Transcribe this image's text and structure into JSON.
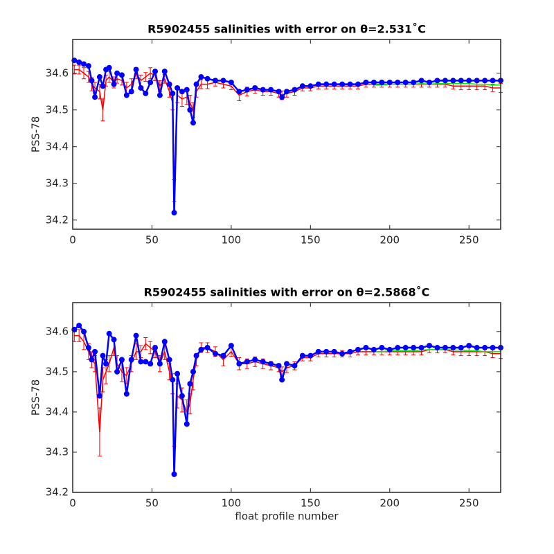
{
  "chart_data": [
    {
      "type": "line",
      "title": "R5902455 salinities with error on θ=2.531˚C",
      "ylabel": "PSS-78",
      "x": [
        1,
        4,
        7,
        10,
        12,
        14,
        17,
        19,
        21,
        23,
        26,
        28,
        31,
        34,
        37,
        40,
        43,
        46,
        49,
        52,
        55,
        58,
        61,
        63,
        64,
        66,
        69,
        72,
        74,
        76,
        78,
        81,
        85,
        90,
        95,
        100,
        105,
        110,
        115,
        120,
        125,
        130,
        132,
        135,
        140,
        145,
        150,
        155,
        160,
        165,
        170,
        175,
        180,
        185,
        190,
        195,
        200,
        205,
        210,
        215,
        220,
        225,
        230,
        235,
        240,
        245,
        250,
        255,
        260,
        265,
        270
      ],
      "xlim": [
        0,
        270
      ],
      "xticks": [
        0,
        50,
        100,
        150,
        200,
        250
      ],
      "ylim": [
        34.175,
        34.692
      ],
      "yticks": [
        34.2,
        34.3,
        34.4,
        34.5,
        34.6
      ],
      "series": [
        {
          "color": "#ff0000",
          "values": [
            34.61,
            34.61,
            34.6,
            34.59,
            34.57,
            34.56,
            34.55,
            34.5,
            34.58,
            34.59,
            34.575,
            34.585,
            34.58,
            34.56,
            34.57,
            34.6,
            34.58,
            34.59,
            34.6,
            34.595,
            34.565,
            34.585,
            34.55,
            34.52,
            34.28,
            34.54,
            34.53,
            34.535,
            34.52,
            34.5,
            34.55,
            34.57,
            34.57,
            34.575,
            34.57,
            34.565,
            34.54,
            34.55,
            34.555,
            34.55,
            34.55,
            34.545,
            34.54,
            34.545,
            34.55,
            34.56,
            34.56,
            34.565,
            34.565,
            34.565,
            34.565,
            34.565,
            34.565,
            34.57,
            34.57,
            34.57,
            34.57,
            34.57,
            34.57,
            34.57,
            34.57,
            34.57,
            34.57,
            34.57,
            34.565,
            34.565,
            34.565,
            34.565,
            34.565,
            34.56,
            34.56
          ],
          "errors": [
            0.012,
            0.012,
            0.015,
            0.015,
            0.018,
            0.015,
            0.02,
            0.03,
            0.015,
            0.015,
            0.015,
            0.012,
            0.012,
            0.015,
            0.015,
            0.015,
            0.015,
            0.012,
            0.015,
            0.015,
            0.015,
            0.012,
            0.015,
            0.02,
            0.03,
            0.02,
            0.02,
            0.02,
            0.02,
            0.02,
            0.015,
            0.012,
            0.012,
            0.01,
            0.01,
            0.01,
            0.015,
            0.012,
            0.01,
            0.01,
            0.01,
            0.01,
            0.012,
            0.01,
            0.01,
            0.008,
            0.008,
            0.008,
            0.008,
            0.008,
            0.008,
            0.008,
            0.008,
            0.008,
            0.008,
            0.008,
            0.008,
            0.008,
            0.008,
            0.008,
            0.008,
            0.008,
            0.008,
            0.008,
            0.008,
            0.01,
            0.01,
            0.01,
            0.01,
            0.01,
            0.012
          ]
        },
        {
          "color": "#00ee00",
          "values": [
            null,
            null,
            null,
            null,
            null,
            null,
            null,
            null,
            null,
            null,
            null,
            null,
            null,
            null,
            null,
            null,
            null,
            null,
            null,
            null,
            null,
            null,
            null,
            null,
            null,
            null,
            null,
            null,
            null,
            null,
            null,
            null,
            null,
            null,
            null,
            null,
            null,
            null,
            null,
            null,
            null,
            null,
            null,
            null,
            null,
            null,
            null,
            null,
            null,
            null,
            null,
            null,
            null,
            null,
            34.568,
            34.568,
            34.57,
            34.57,
            34.57,
            34.57,
            34.572,
            34.57,
            34.572,
            34.572,
            34.572,
            34.572,
            34.572,
            34.57,
            34.57,
            34.568,
            34.568
          ]
        },
        {
          "color": "#0000ff",
          "marker": true,
          "values": [
            34.635,
            34.63,
            34.625,
            34.62,
            34.58,
            34.535,
            34.59,
            34.565,
            34.61,
            34.615,
            34.57,
            34.6,
            34.595,
            34.54,
            34.55,
            34.61,
            34.56,
            34.545,
            34.575,
            34.605,
            34.54,
            34.605,
            34.57,
            34.545,
            34.22,
            34.56,
            34.55,
            34.555,
            34.5,
            34.465,
            34.57,
            34.59,
            34.585,
            34.58,
            34.58,
            34.575,
            34.55,
            34.555,
            34.56,
            34.555,
            34.555,
            34.55,
            34.535,
            34.55,
            34.555,
            34.565,
            34.565,
            34.57,
            34.57,
            34.57,
            34.57,
            34.57,
            34.57,
            34.575,
            34.575,
            34.575,
            34.575,
            34.575,
            34.575,
            34.575,
            34.58,
            34.575,
            34.58,
            34.58,
            34.58,
            34.58,
            34.58,
            34.58,
            34.58,
            34.58,
            34.58
          ]
        }
      ]
    },
    {
      "type": "line",
      "title": "R5902455 salinities with error on θ=2.5868˚C",
      "ylabel": "PSS-78",
      "xlabel": "float profile number",
      "x": [
        1,
        4,
        7,
        10,
        12,
        14,
        17,
        19,
        21,
        23,
        26,
        28,
        31,
        34,
        37,
        40,
        43,
        46,
        49,
        52,
        55,
        58,
        61,
        63,
        64,
        66,
        69,
        72,
        74,
        76,
        78,
        81,
        85,
        90,
        95,
        100,
        105,
        110,
        115,
        120,
        125,
        130,
        132,
        135,
        140,
        145,
        150,
        155,
        160,
        165,
        170,
        175,
        180,
        185,
        190,
        195,
        200,
        205,
        210,
        215,
        220,
        225,
        230,
        235,
        240,
        245,
        250,
        255,
        260,
        265,
        270
      ],
      "xlim": [
        0,
        270
      ],
      "xticks": [
        0,
        50,
        100,
        150,
        200,
        250
      ],
      "ylim": [
        34.2,
        34.672
      ],
      "yticks": [
        34.2,
        34.3,
        34.4,
        34.5,
        34.6
      ],
      "series": [
        {
          "color": "#ff0000",
          "values": [
            34.59,
            34.59,
            34.575,
            34.55,
            34.53,
            34.52,
            34.35,
            34.48,
            34.5,
            34.52,
            34.56,
            34.52,
            34.5,
            34.49,
            34.52,
            34.55,
            34.55,
            34.57,
            34.56,
            34.55,
            34.52,
            34.55,
            34.5,
            34.47,
            34.28,
            34.44,
            34.43,
            34.4,
            34.42,
            34.48,
            34.53,
            34.56,
            34.56,
            34.55,
            34.53,
            34.55,
            34.52,
            34.52,
            34.525,
            34.52,
            34.515,
            34.51,
            34.5,
            34.51,
            34.515,
            34.535,
            34.535,
            34.545,
            34.545,
            34.545,
            34.545,
            34.545,
            34.55,
            34.55,
            34.55,
            34.55,
            34.55,
            34.55,
            34.55,
            34.55,
            34.55,
            34.555,
            34.555,
            34.555,
            34.55,
            34.55,
            34.55,
            34.55,
            34.55,
            34.545,
            34.545
          ],
          "errors": [
            0.015,
            0.015,
            0.02,
            0.02,
            0.02,
            0.02,
            0.06,
            0.03,
            0.03,
            0.02,
            0.02,
            0.02,
            0.025,
            0.02,
            0.02,
            0.02,
            0.015,
            0.015,
            0.015,
            0.015,
            0.02,
            0.02,
            0.02,
            0.025,
            0.035,
            0.03,
            0.03,
            0.03,
            0.025,
            0.025,
            0.015,
            0.012,
            0.012,
            0.012,
            0.015,
            0.012,
            0.015,
            0.012,
            0.012,
            0.012,
            0.01,
            0.01,
            0.012,
            0.012,
            0.01,
            0.008,
            0.008,
            0.008,
            0.008,
            0.008,
            0.008,
            0.008,
            0.008,
            0.008,
            0.008,
            0.008,
            0.008,
            0.008,
            0.008,
            0.008,
            0.008,
            0.008,
            0.008,
            0.008,
            0.008,
            0.01,
            0.01,
            0.01,
            0.01,
            0.01,
            0.012
          ]
        },
        {
          "color": "#00ee00",
          "values": [
            null,
            null,
            null,
            null,
            null,
            null,
            null,
            null,
            null,
            null,
            null,
            null,
            null,
            null,
            null,
            null,
            null,
            null,
            null,
            null,
            null,
            null,
            null,
            null,
            null,
            null,
            null,
            null,
            null,
            null,
            null,
            null,
            null,
            null,
            null,
            null,
            null,
            null,
            null,
            null,
            null,
            null,
            null,
            null,
            null,
            null,
            null,
            null,
            null,
            null,
            null,
            null,
            null,
            null,
            34.55,
            34.55,
            34.552,
            34.552,
            34.552,
            34.552,
            34.554,
            34.555,
            34.555,
            34.555,
            34.554,
            34.554,
            34.552,
            34.552,
            34.55,
            34.55,
            34.55
          ]
        },
        {
          "color": "#0000ff",
          "marker": true,
          "values": [
            34.605,
            34.615,
            34.6,
            34.56,
            34.53,
            34.55,
            34.44,
            34.54,
            34.52,
            34.595,
            34.58,
            34.5,
            34.53,
            34.445,
            34.53,
            34.59,
            34.525,
            34.525,
            34.52,
            34.56,
            34.52,
            34.575,
            34.53,
            34.48,
            34.245,
            34.495,
            34.44,
            34.37,
            34.47,
            34.5,
            34.54,
            34.555,
            34.56,
            34.545,
            34.54,
            34.565,
            34.52,
            34.525,
            34.53,
            34.525,
            34.52,
            34.515,
            34.48,
            34.52,
            34.515,
            34.54,
            34.54,
            34.55,
            34.55,
            34.55,
            34.545,
            34.55,
            34.555,
            34.56,
            34.555,
            34.56,
            34.555,
            34.56,
            34.56,
            34.56,
            34.56,
            34.565,
            34.56,
            34.56,
            34.56,
            34.56,
            34.565,
            34.56,
            34.56,
            34.56,
            34.56
          ]
        }
      ]
    }
  ]
}
